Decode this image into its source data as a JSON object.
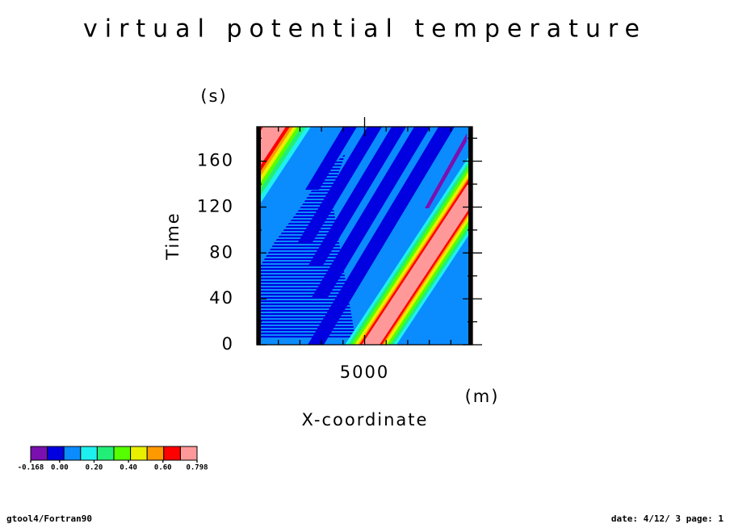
{
  "chart_data": {
    "type": "contour",
    "title": "virtual potential temperature",
    "x_label": "X-coordinate",
    "x_unit": "(m)",
    "y_label": "Time",
    "y_unit": "(s)",
    "xlim": [
      2500,
      7500
    ],
    "xticks": [
      5000
    ],
    "x_minor_ticks": [
      3000,
      3500,
      4000,
      4500,
      5500,
      6000,
      6500,
      7000
    ],
    "ylim": [
      0,
      190
    ],
    "yticks": [
      0,
      40,
      80,
      120,
      160
    ],
    "y_minor_ticks": [
      20,
      60,
      100,
      140,
      180
    ],
    "background_color": "#0a8cff",
    "regions": [
      {
        "color": "#1ef0f0",
        "points": [
          [
            -1264,
            0
          ],
          [
            422,
            0
          ],
          [
            3755,
            190
          ],
          [
            2069,
            190
          ]
        ]
      },
      {
        "color": "#22ee77",
        "points": [
          [
            -1151,
            0
          ],
          [
            309,
            0
          ],
          [
            3642,
            190
          ],
          [
            2182,
            190
          ]
        ]
      },
      {
        "color": "#55ff00",
        "points": [
          [
            -1039,
            0
          ],
          [
            197,
            0
          ],
          [
            3530,
            190
          ],
          [
            2294,
            190
          ]
        ]
      },
      {
        "color": "#e8f000",
        "points": [
          [
            -945,
            0
          ],
          [
            103,
            0
          ],
          [
            3436,
            190
          ],
          [
            2388,
            190
          ]
        ]
      },
      {
        "color": "#ff9900",
        "points": [
          [
            -852,
            0
          ],
          [
            10,
            0
          ],
          [
            3343,
            190
          ],
          [
            2481,
            190
          ]
        ]
      },
      {
        "color": "#ff0000",
        "points": [
          [
            -777,
            0
          ],
          [
            -65,
            0
          ],
          [
            3268,
            190
          ],
          [
            2556,
            190
          ]
        ]
      },
      {
        "color": "#ff9999",
        "points": [
          [
            -683,
            0
          ],
          [
            -159,
            0
          ],
          [
            3174,
            190
          ],
          [
            2650,
            190
          ]
        ]
      },
      {
        "color": "#0000e0",
        "hatched": true,
        "points": [
          [
            2575,
            6.3
          ],
          [
            4785,
            6.3
          ],
          [
            4597,
            47.1
          ],
          [
            4410,
            89.4
          ],
          [
            4223,
            131.6
          ],
          [
            4560,
            166.8
          ],
          [
            4036,
            149.2
          ],
          [
            3474,
            117.5
          ],
          [
            2912,
            89.4
          ],
          [
            2575,
            68.3
          ]
        ]
      },
      {
        "color": "#0000e0",
        "points": [
          [
            4504,
            190
          ],
          [
            4822,
            190
          ],
          [
            3942,
            135.1
          ],
          [
            3624,
            135.1
          ]
        ]
      },
      {
        "color": "#0000e0",
        "points": [
          [
            5066,
            190
          ],
          [
            5403,
            190
          ],
          [
            3792,
            89.4
          ],
          [
            3455,
            89.4
          ]
        ]
      },
      {
        "color": "#0000e0",
        "points": [
          [
            5627,
            190
          ],
          [
            5964,
            190
          ],
          [
            4017,
            68.3
          ],
          [
            3680,
            68.3
          ]
        ]
      },
      {
        "color": "#0000e0",
        "points": [
          [
            6152,
            190
          ],
          [
            6527,
            190
          ],
          [
            4129,
            40.1
          ],
          [
            3755,
            40.1
          ]
        ]
      },
      {
        "color": "#0000e0",
        "points": [
          [
            6714,
            190
          ],
          [
            7088,
            190
          ],
          [
            4054,
            0
          ],
          [
            3680,
            0
          ]
        ]
      },
      {
        "color": "#1ef0f0",
        "points": [
          [
            4542,
            0
          ],
          [
            5740,
            0
          ],
          [
            9073,
            190
          ],
          [
            7875,
            190
          ]
        ]
      },
      {
        "color": "#22ee77",
        "points": [
          [
            4617,
            0
          ],
          [
            5665,
            0
          ],
          [
            8998,
            190
          ],
          [
            7950,
            190
          ]
        ]
      },
      {
        "color": "#55ff00",
        "points": [
          [
            4692,
            0
          ],
          [
            5590,
            0
          ],
          [
            8923,
            190
          ],
          [
            8025,
            190
          ]
        ]
      },
      {
        "color": "#e8f000",
        "points": [
          [
            4766,
            0
          ],
          [
            5516,
            0
          ],
          [
            8849,
            190
          ],
          [
            8099,
            190
          ]
        ]
      },
      {
        "color": "#ff9900",
        "points": [
          [
            4841,
            0
          ],
          [
            5441,
            0
          ],
          [
            8774,
            190
          ],
          [
            8174,
            190
          ]
        ]
      },
      {
        "color": "#ff0000",
        "points": [
          [
            4879,
            0
          ],
          [
            5403,
            0
          ],
          [
            8736,
            190
          ],
          [
            8212,
            190
          ]
        ]
      },
      {
        "color": "#ff9999",
        "points": [
          [
            4935,
            0
          ],
          [
            5347,
            0
          ],
          [
            8680,
            190
          ],
          [
            8268,
            190
          ]
        ]
      },
      {
        "color": "#7a10b0",
        "points": [
          [
            6395,
            118.9
          ],
          [
            6489,
            118.9
          ],
          [
            7369,
            177.3
          ],
          [
            7369,
            184.4
          ]
        ]
      }
    ],
    "colorbar": {
      "colors": [
        "#7a10b0",
        "#0000e0",
        "#0a8cff",
        "#1ef0f0",
        "#22ee77",
        "#55ff00",
        "#e8f000",
        "#ff9900",
        "#ff0000",
        "#ff9999"
      ],
      "ticks": [
        -0.168,
        {
          "value": 0,
          "label": "0.00"
        },
        {
          "value": 0.2,
          "label": "0.20"
        },
        {
          "value": 0.4,
          "label": "0.40"
        },
        {
          "value": 0.6,
          "label": "0.60"
        },
        0.798
      ]
    }
  },
  "footer": {
    "left": "gtool4/Fortran90",
    "right": "date: 4/12/ 3 page: 1"
  }
}
